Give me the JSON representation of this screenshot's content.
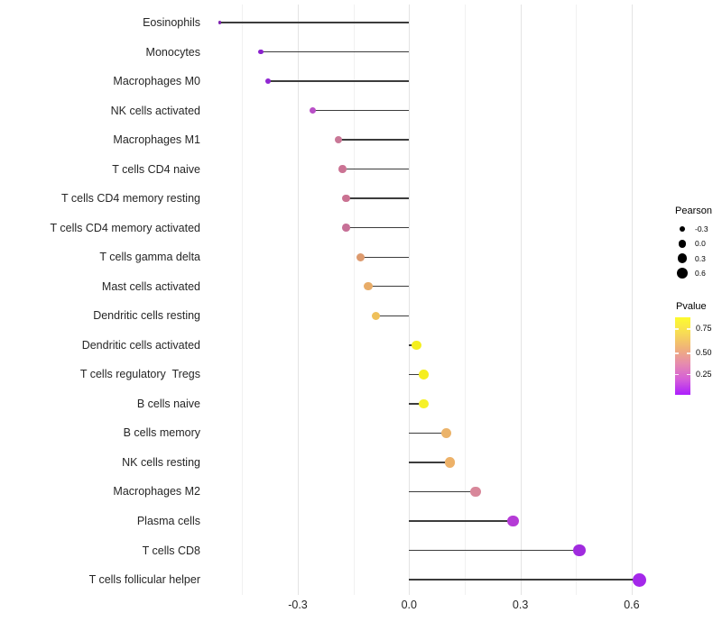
{
  "chart_data": {
    "type": "lollipop",
    "orientation": "horizontal",
    "title": "",
    "xlabel": "",
    "ylabel": "",
    "baseline": 0,
    "x_axis": {
      "tick_labels": [
        "-0.3",
        "0.0",
        "0.3",
        "0.6"
      ],
      "tick_values": [
        -0.3,
        0.0,
        0.3,
        0.6
      ],
      "minor_tick_values": [
        -0.45,
        -0.15,
        0.15,
        0.45
      ],
      "range": [
        -0.555,
        0.655
      ],
      "grid": "vertical-only"
    },
    "size_encoding": "Pearson correlation",
    "color_encoding": "Pvalue",
    "points": [
      {
        "label": "Eosinophils",
        "pearson": -0.51,
        "color": "#7E22B0"
      },
      {
        "label": "Monocytes",
        "pearson": -0.4,
        "color": "#8B21CE"
      },
      {
        "label": "Macrophages M0",
        "pearson": -0.38,
        "color": "#9027D2"
      },
      {
        "label": "NK cells activated",
        "pearson": -0.26,
        "color": "#B94FC7"
      },
      {
        "label": "Macrophages M1",
        "pearson": -0.19,
        "color": "#C97897"
      },
      {
        "label": "T cells CD4 naive",
        "pearson": -0.18,
        "color": "#CB7394"
      },
      {
        "label": "T cells CD4 memory resting",
        "pearson": -0.17,
        "color": "#CA7292"
      },
      {
        "label": "T cells CD4 memory activated",
        "pearson": -0.17,
        "color": "#C77097"
      },
      {
        "label": "T cells gamma delta",
        "pearson": -0.13,
        "color": "#DD9A6E"
      },
      {
        "label": "Mast cells activated",
        "pearson": -0.11,
        "color": "#E8AC68"
      },
      {
        "label": "Dendritic cells resting",
        "pearson": -0.09,
        "color": "#EFC05A"
      },
      {
        "label": "Dendritic cells activated",
        "pearson": 0.02,
        "color": "#F4EF1F"
      },
      {
        "label": "T cells regulatory  Tregs",
        "pearson": 0.04,
        "color": "#F5EE1E"
      },
      {
        "label": "B cells naive",
        "pearson": 0.04,
        "color": "#F6F127"
      },
      {
        "label": "B cells memory",
        "pearson": 0.1,
        "color": "#EBB36A"
      },
      {
        "label": "NK cells resting",
        "pearson": 0.11,
        "color": "#EDB168"
      },
      {
        "label": "Macrophages M2",
        "pearson": 0.18,
        "color": "#D8879A"
      },
      {
        "label": "Plasma cells",
        "pearson": 0.28,
        "color": "#B53BD6"
      },
      {
        "label": "T cells CD8",
        "pearson": 0.46,
        "color": "#A02BDE"
      },
      {
        "label": "T cells follicular helper",
        "pearson": 0.62,
        "color": "#A428EA"
      }
    ]
  },
  "legends": {
    "pearson": {
      "title": "Pearson",
      "items": [
        {
          "label": "-0.3",
          "value": -0.3
        },
        {
          "label": "0.0",
          "value": 0.0
        },
        {
          "label": "0.3",
          "value": 0.3
        },
        {
          "label": "0.6",
          "value": 0.6
        }
      ]
    },
    "pvalue": {
      "title": "Pvalue",
      "tick_labels": [
        "0.75",
        "0.50",
        "0.25"
      ],
      "gradient_stops": [
        "#FDFB2E",
        "#F7DC55",
        "#F0B279",
        "#E68BAE",
        "#D55FD8",
        "#AC1EFD"
      ]
    }
  },
  "colors": {
    "background": "#FFFFFF",
    "stem": "#3C3C3C",
    "grid_major": "#E4E4E4",
    "grid_minor": "#F1F1F1",
    "axis_text": "#262626",
    "legend_dot": "#000000"
  }
}
